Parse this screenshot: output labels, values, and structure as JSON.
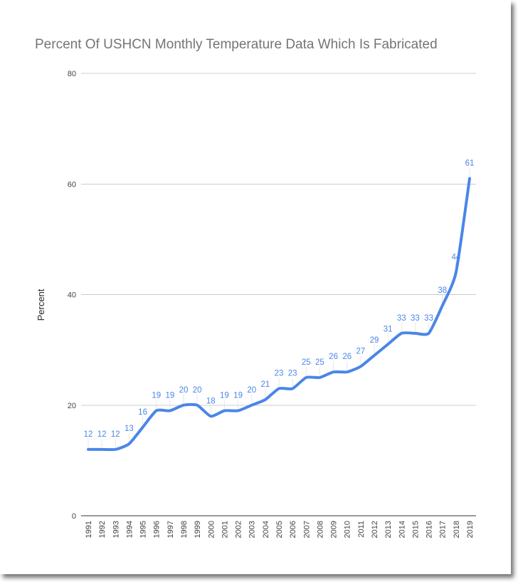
{
  "chart_data": {
    "type": "line",
    "title": "Percent Of USHCN Monthly Temperature Data Which Is Fabricated",
    "xlabel": "",
    "ylabel": "Percent",
    "ylim": [
      0,
      80
    ],
    "yticks": [
      0,
      20,
      40,
      60,
      80
    ],
    "grid": true,
    "legend": "none",
    "line_color": "#4a86e8",
    "categories": [
      "1991",
      "1992",
      "1993",
      "1994",
      "1995",
      "1996",
      "1997",
      "1998",
      "1999",
      "2000",
      "2001",
      "2002",
      "2003",
      "2004",
      "2005",
      "2006",
      "2007",
      "2008",
      "2009",
      "2010",
      "2011",
      "2012",
      "2013",
      "2014",
      "2015",
      "2016",
      "2017",
      "2018",
      "2019"
    ],
    "series": [
      {
        "name": "Percent",
        "values": [
          12,
          12,
          12,
          13,
          16,
          19,
          19,
          20,
          20,
          18,
          19,
          19,
          20,
          21,
          23,
          23,
          25,
          25,
          26,
          26,
          27,
          29,
          31,
          33,
          33,
          33,
          38,
          44,
          61
        ]
      }
    ]
  }
}
